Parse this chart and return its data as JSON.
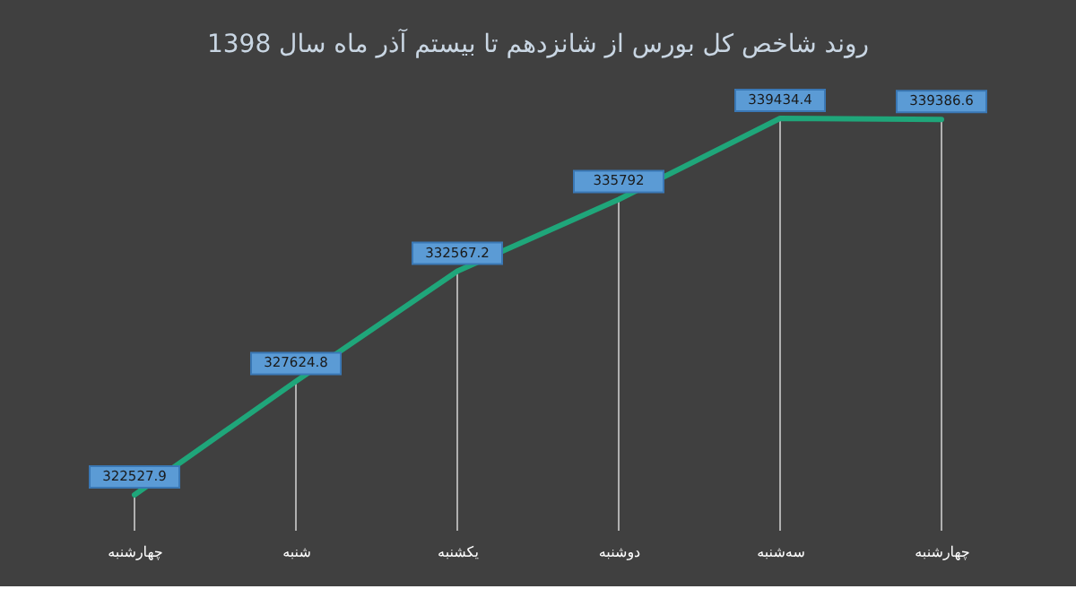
{
  "chart_data": {
    "type": "line",
    "title": "روند شاخص کل بورس از شانزدهم تا بیستم آذر ماه سال 1398",
    "categories": [
      "چهارشنبه",
      "شنبه",
      "یکشنبه",
      "دوشنبه",
      "سه‌شنبه",
      "چهارشنبه"
    ],
    "series": [
      {
        "color": "#1fa67a",
        "values": [
          322527.9,
          327624.8,
          332567.2,
          335792,
          339434.4,
          339386.6
        ]
      }
    ],
    "data_labels": true,
    "tick_labels": "x",
    "grid": "x",
    "line_style": "solid"
  }
}
